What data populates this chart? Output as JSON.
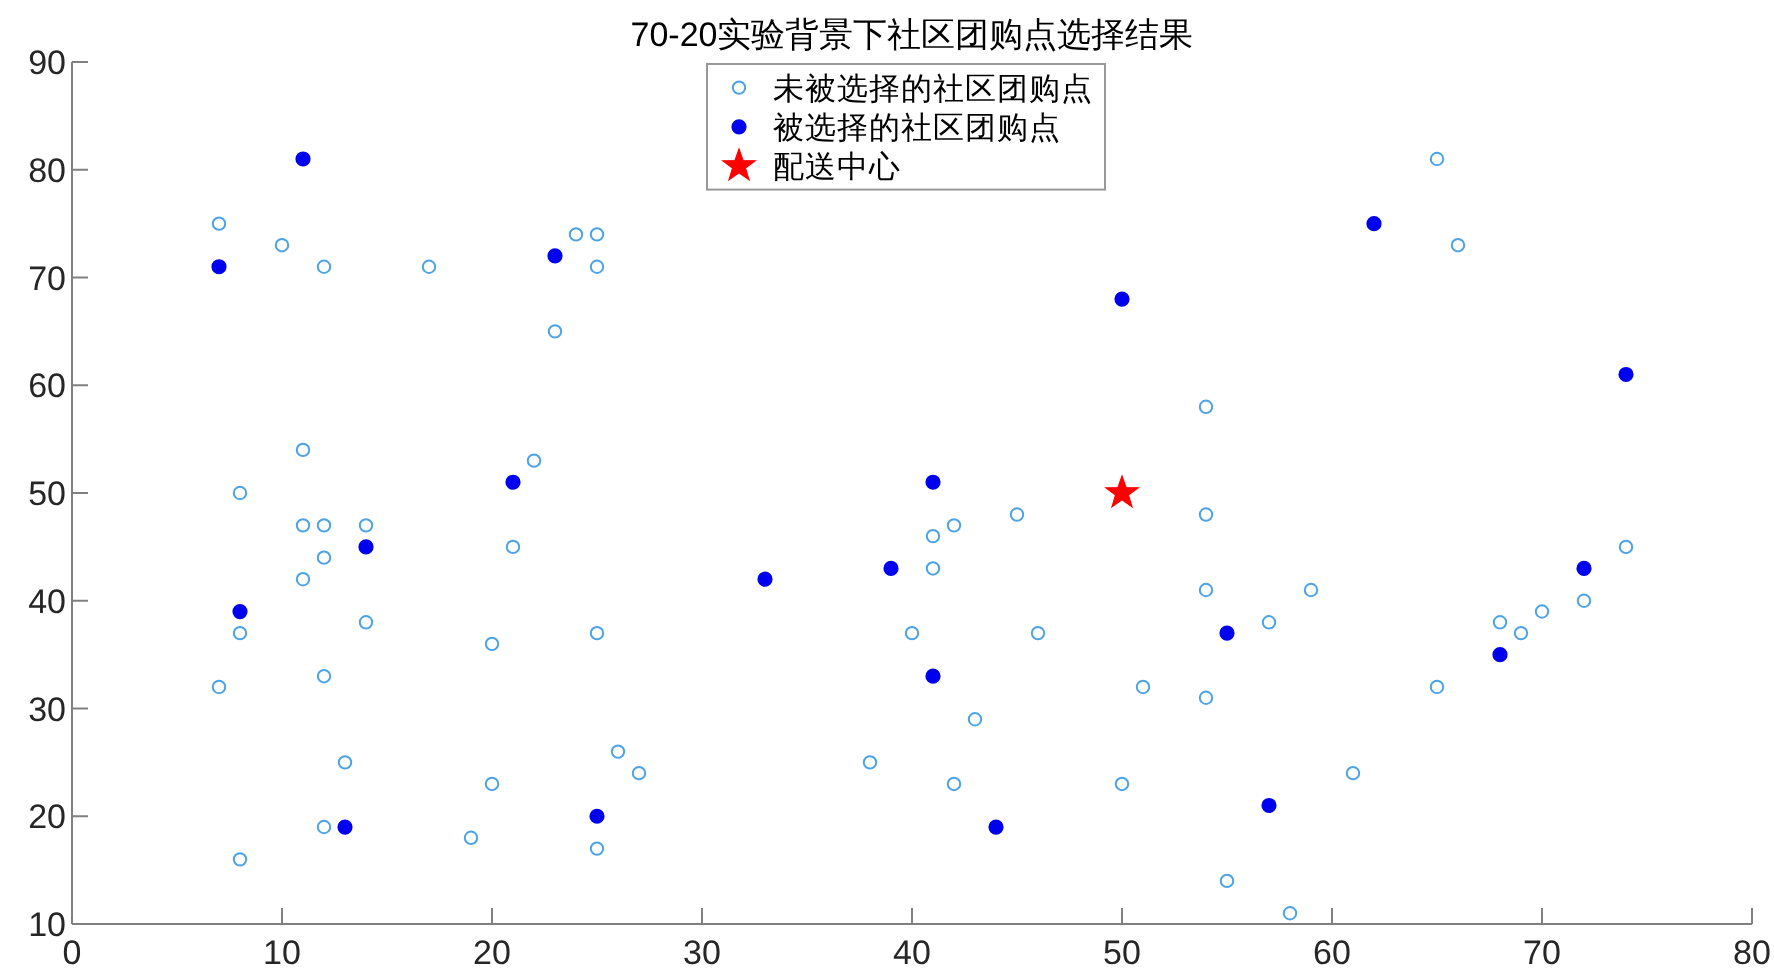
{
  "chart_data": {
    "type": "scatter",
    "title": "70-20实验背景下社区团购点选择结果",
    "xlim": [
      0,
      80
    ],
    "ylim": [
      10,
      90
    ],
    "xticks": [
      0,
      10,
      20,
      30,
      40,
      50,
      60,
      70,
      80
    ],
    "yticks": [
      10,
      20,
      30,
      40,
      50,
      60,
      70,
      80,
      90
    ],
    "grid": false,
    "legend": "top",
    "series": [
      {
        "name": "未被选择的社区团购点",
        "color": "#4da3e6",
        "marker": "circle",
        "x": [
          7,
          10,
          12,
          17,
          24,
          25,
          25,
          23,
          11,
          22,
          8,
          11,
          12,
          14,
          12,
          11,
          21,
          14,
          8,
          25,
          20,
          12,
          7,
          26,
          13,
          27,
          20,
          12,
          19,
          25,
          8,
          38,
          40,
          65,
          66,
          54,
          42,
          41,
          45,
          54,
          41,
          54,
          59,
          72,
          70,
          57,
          68,
          46,
          69,
          51,
          65,
          54,
          43,
          61,
          42,
          50,
          55,
          58,
          74
        ],
        "values": [
          75,
          73,
          71,
          71,
          74,
          74,
          71,
          65,
          54,
          53,
          50,
          47,
          47,
          47,
          44,
          42,
          45,
          38,
          37,
          37,
          36,
          33,
          32,
          26,
          25,
          24,
          23,
          19,
          18,
          17,
          16,
          25,
          37,
          81,
          73,
          58,
          47,
          46,
          48,
          48,
          43,
          41,
          41,
          40,
          39,
          38,
          38,
          37,
          37,
          32,
          32,
          31,
          29,
          24,
          23,
          23,
          14,
          11,
          45
        ]
      },
      {
        "name": "被选择的社区团购点",
        "color": "#0000f0",
        "marker": "circle",
        "x": [
          7,
          11,
          23,
          21,
          14,
          8,
          13,
          25,
          33,
          39,
          41,
          41,
          44,
          50,
          55,
          57,
          62,
          68,
          72,
          74
        ],
        "values": [
          71,
          81,
          72,
          51,
          45,
          39,
          19,
          20,
          42,
          43,
          51,
          33,
          19,
          68,
          37,
          21,
          75,
          35,
          43,
          61
        ]
      },
      {
        "name": "配送中心",
        "color": "#ff0000",
        "marker": "star",
        "x": [
          50
        ],
        "values": [
          50
        ]
      }
    ]
  }
}
